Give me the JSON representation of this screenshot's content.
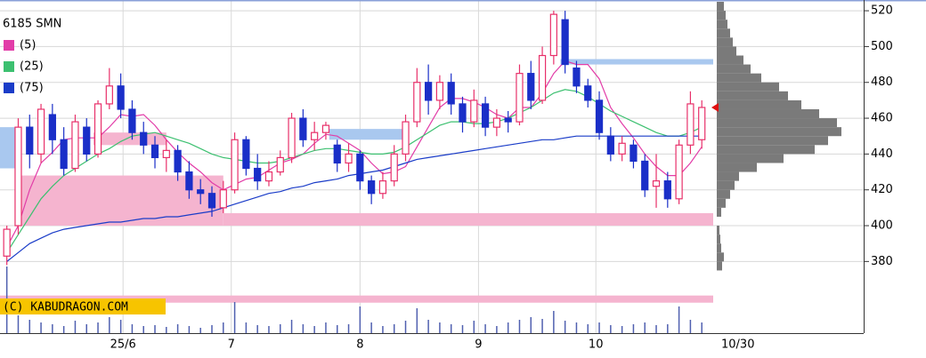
{
  "chart_data": {
    "type": "candlestick",
    "title": "6185 SMN",
    "watermark": "(C) KABUDRAGON.COM",
    "last_date": "10/30",
    "ylim": [
      340,
      526
    ],
    "yticks": [
      380,
      400,
      420,
      440,
      460,
      480,
      500,
      520
    ],
    "xlim": [
      -0.6,
      62
    ],
    "xticks": [
      {
        "value": 10.2,
        "label": "25/6"
      },
      {
        "value": 19.7,
        "label": "7"
      },
      {
        "value": 31,
        "label": "8"
      },
      {
        "value": 41.4,
        "label": "9"
      },
      {
        "value": 51.7,
        "label": "10"
      }
    ],
    "grid": true,
    "up_color": "#e8306a",
    "down_color": "#1a2fc8",
    "open": [
      383,
      400,
      455,
      440,
      462,
      448,
      432,
      455,
      440,
      468,
      478,
      465,
      452,
      445,
      438,
      442,
      430,
      420,
      418,
      410,
      420,
      448,
      432,
      425,
      430,
      438,
      460,
      448,
      452,
      445,
      435,
      440,
      425,
      418,
      425,
      440,
      458,
      480,
      470,
      480,
      468,
      458,
      468,
      455,
      460,
      458,
      485,
      470,
      495,
      515,
      488,
      478,
      470,
      450,
      440,
      445,
      436,
      422,
      425,
      415,
      445,
      448
    ],
    "high": [
      400,
      460,
      462,
      468,
      468,
      455,
      462,
      460,
      470,
      488,
      485,
      470,
      458,
      450,
      448,
      445,
      436,
      426,
      422,
      425,
      452,
      450,
      440,
      436,
      442,
      463,
      465,
      458,
      458,
      448,
      446,
      442,
      428,
      430,
      445,
      462,
      488,
      490,
      484,
      485,
      472,
      476,
      472,
      465,
      464,
      490,
      492,
      500,
      520,
      520,
      492,
      482,
      475,
      455,
      450,
      448,
      440,
      440,
      430,
      448,
      475,
      470
    ],
    "low": [
      378,
      395,
      432,
      435,
      440,
      428,
      430,
      436,
      438,
      465,
      460,
      448,
      440,
      432,
      430,
      425,
      415,
      412,
      405,
      407,
      418,
      428,
      420,
      422,
      428,
      435,
      444,
      442,
      448,
      430,
      430,
      420,
      412,
      415,
      422,
      436,
      455,
      462,
      465,
      462,
      452,
      455,
      450,
      450,
      452,
      456,
      465,
      468,
      490,
      485,
      474,
      466,
      448,
      436,
      436,
      432,
      416,
      410,
      410,
      412,
      440,
      443
    ],
    "close": [
      398,
      455,
      440,
      465,
      448,
      432,
      458,
      440,
      468,
      478,
      465,
      452,
      445,
      438,
      442,
      430,
      420,
      418,
      410,
      420,
      448,
      432,
      425,
      430,
      438,
      460,
      448,
      452,
      456,
      435,
      440,
      425,
      418,
      425,
      440,
      458,
      480,
      470,
      480,
      468,
      458,
      470,
      455,
      460,
      458,
      485,
      470,
      495,
      518,
      490,
      478,
      470,
      452,
      440,
      446,
      436,
      420,
      425,
      415,
      445,
      468,
      466
    ],
    "series": [
      {
        "name": "(5)",
        "color": "#e23ca8",
        "values": [
          388,
          400,
          420,
          435,
          441,
          448,
          449,
          449,
          449,
          455,
          462,
          461,
          462,
          456,
          448,
          441,
          435,
          430,
          424,
          420,
          423,
          426,
          427,
          431,
          435,
          437,
          440,
          446,
          451,
          450,
          446,
          442,
          435,
          429,
          430,
          433,
          444,
          455,
          466,
          471,
          471,
          469,
          466,
          462,
          460,
          466,
          466,
          474,
          485,
          492,
          490,
          490,
          482,
          466,
          457,
          449,
          440,
          433,
          428,
          428,
          435,
          444
        ]
      },
      {
        "name": "(25)",
        "color": "#3cc070",
        "values": [
          385,
          395,
          405,
          415,
          422,
          428,
          432,
          436,
          440,
          443,
          447,
          450,
          451,
          452,
          450,
          448,
          446,
          443,
          440,
          438,
          437,
          436,
          435,
          435,
          436,
          438,
          440,
          442,
          443,
          443,
          442,
          441,
          440,
          440,
          441,
          444,
          448,
          452,
          456,
          458,
          458,
          457,
          457,
          458,
          460,
          463,
          466,
          470,
          474,
          476,
          475,
          472,
          468,
          464,
          461,
          458,
          455,
          452,
          450,
          450,
          452,
          455
        ]
      },
      {
        "name": "(75)",
        "color": "#1a3cc8",
        "values": [
          380,
          385,
          390,
          393,
          396,
          398,
          399,
          400,
          401,
          402,
          402,
          403,
          404,
          404,
          405,
          405,
          406,
          407,
          408,
          410,
          412,
          414,
          416,
          418,
          419,
          421,
          422,
          424,
          425,
          426,
          428,
          429,
          430,
          431,
          433,
          435,
          437,
          438,
          439,
          440,
          441,
          442,
          443,
          444,
          445,
          446,
          447,
          448,
          448,
          449,
          450,
          450,
          450,
          450,
          450,
          450,
          450,
          450,
          450,
          450,
          450,
          450
        ]
      }
    ],
    "zones": [
      {
        "from": -0.6,
        "to": 1,
        "low": 432,
        "high": 455,
        "color": "#a9c8ef"
      },
      {
        "from": 1,
        "to": 19,
        "low": 400,
        "high": 428,
        "color": "#f5b4cf"
      },
      {
        "from": 7.6,
        "to": 14,
        "low": 445,
        "high": 452,
        "color": "#f5b4cf"
      },
      {
        "from": 19,
        "to": 62,
        "low": 400,
        "high": 407,
        "color": "#f5b4cf"
      },
      {
        "from": 28.3,
        "to": 35,
        "low": 448,
        "high": 454,
        "color": "#a9c8ef"
      },
      {
        "from": 48.6,
        "to": 62,
        "low": 490,
        "high": 493,
        "color": "#a9c8ef"
      },
      {
        "from": -0.6,
        "to": 62,
        "low": 357,
        "high": 361,
        "color": "#f5b4cf"
      }
    ],
    "volume": [
      75,
      20,
      15,
      12,
      10,
      8,
      14,
      10,
      12,
      18,
      15,
      10,
      8,
      9,
      7,
      10,
      8,
      6,
      9,
      12,
      35,
      12,
      9,
      8,
      10,
      15,
      10,
      8,
      12,
      9,
      10,
      30,
      12,
      8,
      10,
      14,
      28,
      15,
      12,
      10,
      9,
      14,
      10,
      8,
      12,
      15,
      18,
      16,
      25,
      14,
      12,
      10,
      12,
      9,
      8,
      10,
      12,
      9,
      10,
      30,
      15,
      12
    ],
    "volume_color": "#5060b0",
    "profile": {
      "color": "#7a7a7a",
      "bins": [
        375,
        380,
        385,
        390,
        395,
        400,
        405,
        410,
        415,
        420,
        425,
        430,
        435,
        440,
        445,
        450,
        455,
        460,
        465,
        470,
        475,
        480,
        485,
        490,
        495,
        500,
        505,
        510,
        515,
        520,
        525
      ],
      "counts": [
        6,
        8,
        5,
        4,
        3,
        0,
        5,
        10,
        15,
        20,
        25,
        45,
        75,
        110,
        125,
        140,
        135,
        115,
        95,
        80,
        70,
        50,
        38,
        30,
        22,
        18,
        15,
        12,
        10,
        8
      ]
    },
    "last_price": 466,
    "last_price_color": "#e01010"
  }
}
